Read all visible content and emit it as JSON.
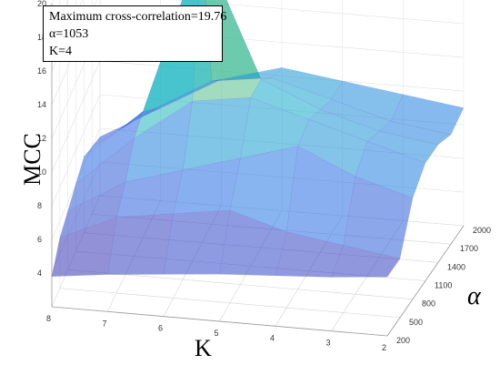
{
  "chart_data": {
    "type": "surface3d",
    "title": "",
    "annotation": {
      "lines": [
        "Maximum cross-correlation=19.76",
        "α=1053",
        "K=4"
      ]
    },
    "xlabel": "K",
    "ylabel": "α",
    "zlabel": "MCC",
    "x_ticks": [
      "8",
      "7",
      "6",
      "5",
      "4",
      "3",
      "2"
    ],
    "y_ticks": [
      "200",
      "500",
      "800",
      "1100",
      "1400",
      "1700",
      "2000"
    ],
    "z_ticks": [
      "4",
      "6",
      "8",
      "10",
      "12",
      "14",
      "16",
      "18",
      "20"
    ],
    "z_range": [
      2,
      20
    ],
    "peak": {
      "K": 4,
      "alpha": 1053,
      "MCC": 19.76
    },
    "x": [
      8,
      7,
      6,
      5,
      4,
      3,
      2
    ],
    "y": [
      200,
      500,
      800,
      1100,
      1400,
      1700,
      2000
    ],
    "z": [
      [
        3.8,
        4.2,
        4.5,
        4.8,
        5.0,
        5.2,
        5.5
      ],
      [
        5.0,
        6.5,
        7.0,
        7.5,
        6.5,
        6.0,
        5.5
      ],
      [
        5.5,
        7.5,
        8.5,
        9.5,
        10.5,
        9.0,
        8.0
      ],
      [
        6.0,
        9.0,
        11.5,
        12.0,
        11.0,
        10.0,
        9.0
      ],
      [
        6.5,
        9.5,
        19.76,
        12.0,
        10.5,
        9.5,
        9.0
      ],
      [
        6.0,
        8.5,
        10.5,
        11.0,
        10.0,
        9.0,
        8.5
      ],
      [
        5.5,
        7.5,
        9.5,
        10.5,
        10.0,
        9.5,
        9.0
      ]
    ],
    "grid": true,
    "colormap": "parula",
    "marker_color": "#e02020"
  }
}
